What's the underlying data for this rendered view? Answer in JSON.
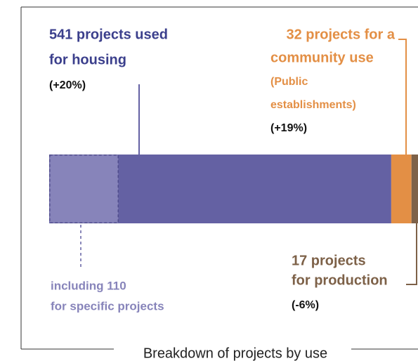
{
  "chart_data": {
    "type": "stacked-bar",
    "title": "Breakdown of projects by use",
    "series": [
      {
        "name": "housing",
        "label_lines": [
          "541 projects used",
          "for housing"
        ],
        "change": "(+20%)",
        "values": [
          541
        ],
        "color": "#6461a3"
      },
      {
        "name": "community",
        "label_lines": [
          "32 projects for a",
          "community use"
        ],
        "note_lines": [
          "(Public",
          "establishments)"
        ],
        "change": "(+19%)",
        "values": [
          32
        ],
        "color": "#e38f45"
      },
      {
        "name": "production",
        "label_lines": [
          "17 projects",
          "for production"
        ],
        "change": "(-6%)",
        "values": [
          17
        ],
        "color": "#7d6148"
      }
    ],
    "subset": {
      "label_lines": [
        "including 110",
        "for specific projects"
      ],
      "value": 110,
      "color": "#8784ba"
    }
  }
}
